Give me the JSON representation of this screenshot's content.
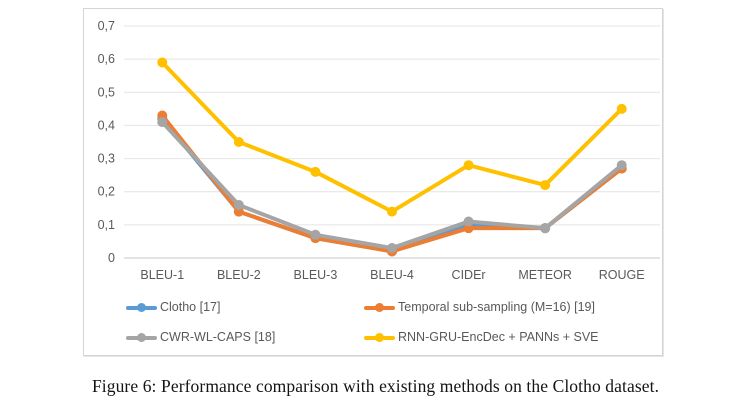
{
  "page": {
    "caption": "Figure 6: Performance comparison with existing methods on the Clotho dataset."
  },
  "chart_data": {
    "type": "line",
    "categories": [
      "BLEU-1",
      "BLEU-2",
      "BLEU-3",
      "BLEU-4",
      "CIDEr",
      "METEOR",
      "ROUGE"
    ],
    "series": [
      {
        "name": "Clotho [17]",
        "color": "#5B9BD5",
        "values": [
          0.42,
          0.14,
          0.06,
          0.02,
          0.1,
          0.09,
          0.27
        ]
      },
      {
        "name": "Temporal sub-sampling (M=16) [19]",
        "color": "#ED7D31",
        "values": [
          0.43,
          0.14,
          0.06,
          0.02,
          0.09,
          0.09,
          0.27
        ]
      },
      {
        "name": "CWR-WL-CAPS [18]",
        "color": "#A5A5A5",
        "values": [
          0.41,
          0.16,
          0.07,
          0.03,
          0.11,
          0.09,
          0.28
        ]
      },
      {
        "name": "RNN-GRU-EncDec + PANNs + SVE",
        "color": "#FFC000",
        "values": [
          0.59,
          0.35,
          0.26,
          0.14,
          0.28,
          0.22,
          0.45
        ]
      }
    ],
    "title": "",
    "xlabel": "",
    "ylabel": "",
    "ylim": [
      0,
      0.7
    ],
    "ytick_step": 0.1,
    "ytick_labels": [
      "0",
      "0,1",
      "0,2",
      "0,3",
      "0,4",
      "0,5",
      "0,6",
      "0,7"
    ],
    "decimal_separator": ",",
    "grid": true,
    "legend_position": "bottom",
    "legend_columns": 2
  },
  "theme": {
    "grid_color": "#e4e4e4",
    "axis_line_color": "#c8c8c8",
    "tick_text_color": "#595959",
    "frame_border_color": "#d4d4d4"
  }
}
